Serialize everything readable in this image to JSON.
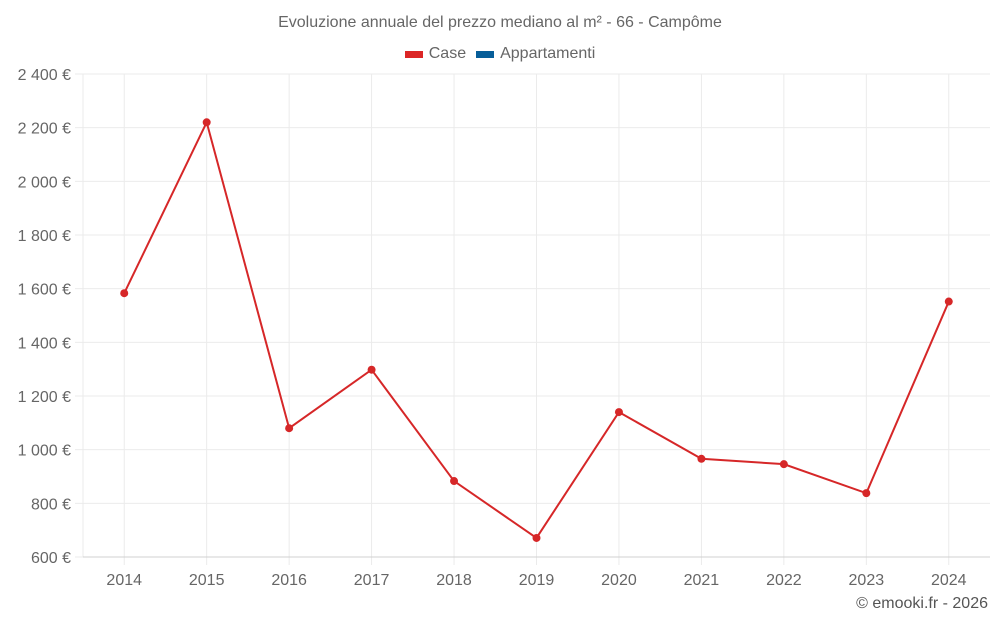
{
  "title": "Evoluzione annuale del prezzo mediano al m² - 66 - Campôme",
  "legend": [
    {
      "label": "Case",
      "color": "#dc2626"
    },
    {
      "label": "Appartamenti",
      "color": "#075e99"
    }
  ],
  "credit": "© emooki.fr - 2026",
  "colors": {
    "line": "#d62728",
    "grid": "#ebebeb",
    "axis": "#d0d0d0",
    "text": "#666666"
  },
  "chart_data": {
    "type": "line",
    "title": "Evoluzione annuale del prezzo mediano al m² - 66 - Campôme",
    "xlabel": "",
    "ylabel": "",
    "categories": [
      "2014",
      "2015",
      "2016",
      "2017",
      "2018",
      "2019",
      "2020",
      "2021",
      "2022",
      "2023",
      "2024"
    ],
    "series": [
      {
        "name": "Case",
        "values": [
          1583,
          2220,
          1080,
          1298,
          883,
          671,
          1140,
          966,
          946,
          838,
          1552
        ]
      },
      {
        "name": "Appartamenti",
        "values": []
      }
    ],
    "ylim": [
      600,
      2400
    ],
    "yticks": [
      600,
      800,
      1000,
      1200,
      1400,
      1600,
      1800,
      2000,
      2200,
      2400
    ],
    "ytick_labels": [
      "600 €",
      "800 €",
      "1 000 €",
      "1 200 €",
      "1 400 €",
      "1 600 €",
      "1 800 €",
      "2 000 €",
      "2 200 €",
      "2 400 €"
    ],
    "grid": true,
    "legend_position": "top"
  }
}
